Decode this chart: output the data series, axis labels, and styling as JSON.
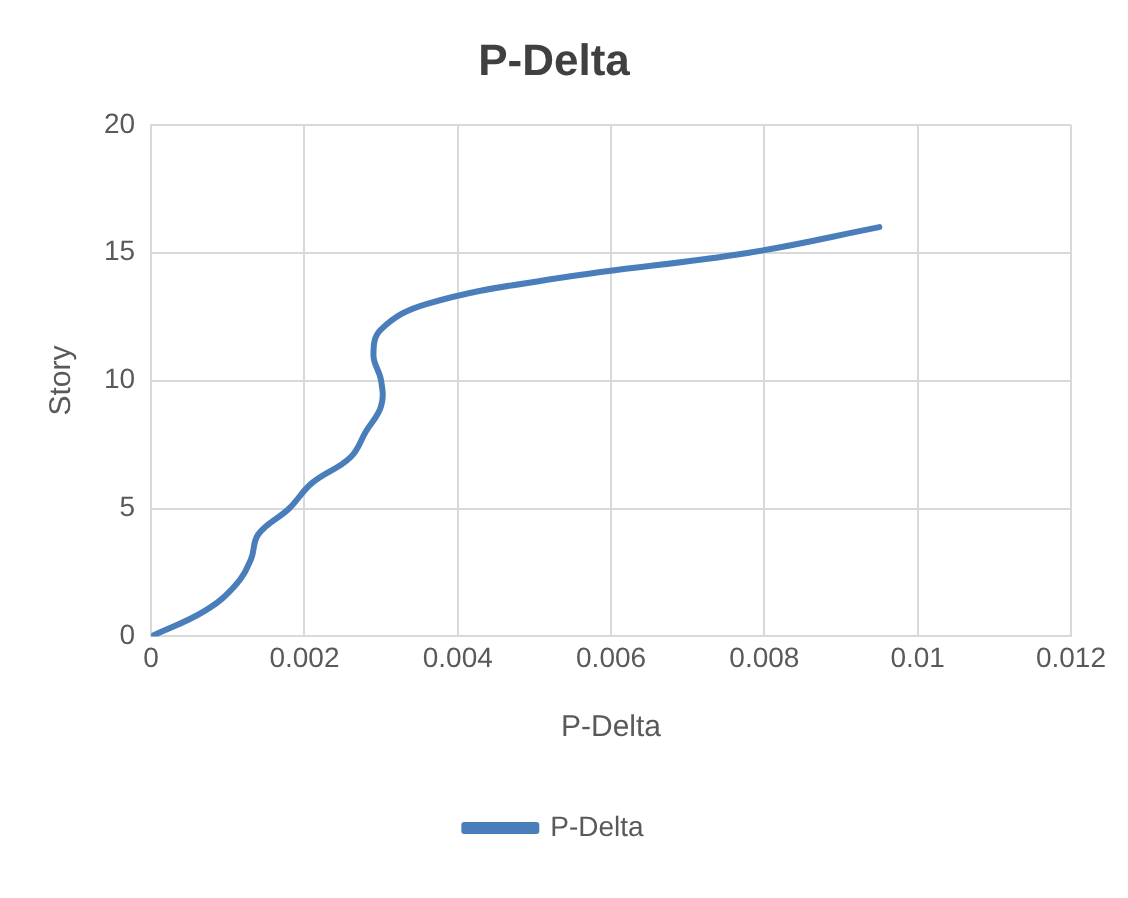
{
  "chart_data": {
    "type": "line",
    "title": "P-Delta",
    "xlabel": "P-Delta",
    "ylabel": "Story",
    "x": [
      0,
      0.0007,
      0.0011,
      0.0013,
      0.0014,
      0.0018,
      0.0021,
      0.0026,
      0.0028,
      0.003,
      0.003,
      0.0029,
      0.003,
      0.0036,
      0.0053,
      0.0078,
      0.0095
    ],
    "series": [
      {
        "name": "P-Delta",
        "color": "#4a7ebb",
        "values": [
          0,
          1,
          2,
          3,
          4,
          5,
          6,
          7,
          8,
          9,
          10,
          11,
          12,
          13,
          14,
          15,
          16
        ]
      }
    ],
    "xlim": [
      0,
      0.012
    ],
    "xticks": [
      0,
      0.002,
      0.004,
      0.006,
      0.008,
      0.01,
      0.012
    ],
    "ylim": [
      0,
      20
    ],
    "yticks": [
      0,
      5,
      10,
      15,
      20
    ],
    "grid": true,
    "legend": "bottom",
    "marker": "none",
    "line_style": "solid"
  }
}
